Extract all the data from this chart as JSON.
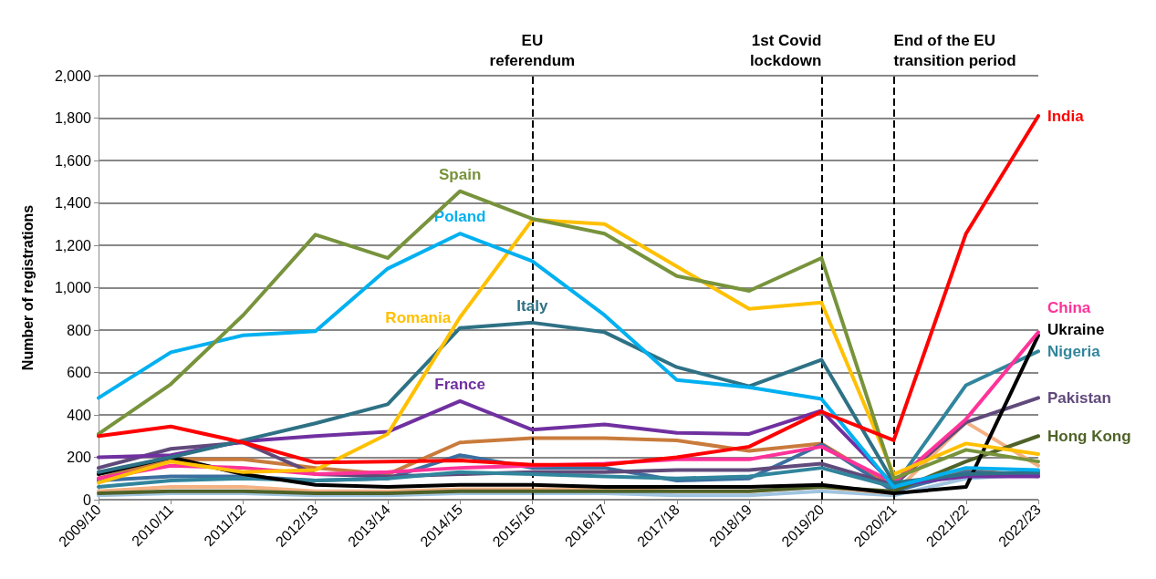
{
  "chart_data": {
    "type": "line",
    "ylabel": "Number of registrations",
    "categories": [
      "2009/10",
      "2010/11",
      "2011/12",
      "2012/13",
      "2013/14",
      "2014/15",
      "2015/16",
      "2016/17",
      "2017/18",
      "2018/19",
      "2019/20",
      "2020/21",
      "2021/22",
      "2022/23"
    ],
    "series": [
      {
        "color": "#a0c4e0",
        "values": [
          20,
          30,
          30,
          20,
          20,
          30,
          30,
          30,
          20,
          20,
          40,
          20,
          100,
          120
        ]
      },
      {
        "color": "#f4b183",
        "values": [
          40,
          60,
          60,
          40,
          40,
          50,
          50,
          50,
          40,
          40,
          60,
          30,
          365,
          160
        ]
      },
      {
        "color": "#c97b3c",
        "values": [
          100,
          190,
          190,
          150,
          120,
          270,
          290,
          290,
          280,
          230,
          265,
          60,
          140,
          110
        ]
      },
      {
        "color": "#3b6fa0",
        "values": [
          90,
          110,
          110,
          90,
          100,
          210,
          150,
          150,
          90,
          100,
          260,
          40,
          130,
          120
        ]
      },
      {
        "name": "Hong Kong",
        "color": "#4f6228",
        "values": [
          30,
          40,
          40,
          30,
          30,
          40,
          40,
          40,
          40,
          40,
          60,
          40,
          180,
          300
        ]
      },
      {
        "name": "Pakistan",
        "color": "#604a7b",
        "values": [
          150,
          240,
          270,
          120,
          110,
          120,
          130,
          130,
          140,
          140,
          170,
          70,
          365,
          480
        ]
      },
      {
        "name": "Nigeria",
        "color": "#31859c",
        "values": [
          60,
          90,
          100,
          90,
          100,
          130,
          120,
          110,
          100,
          110,
          150,
          60,
          540,
          700
        ]
      },
      {
        "name": "Ukraine",
        "color": "#000000",
        "values": [
          120,
          200,
          120,
          70,
          60,
          70,
          70,
          60,
          60,
          60,
          70,
          30,
          60,
          775
        ]
      },
      {
        "name": "China",
        "color": "#ff3399",
        "values": [
          100,
          160,
          150,
          120,
          130,
          150,
          160,
          170,
          190,
          190,
          250,
          80,
          380,
          790
        ]
      },
      {
        "name": "France",
        "color": "#7030a0",
        "values": [
          200,
          210,
          275,
          300,
          320,
          465,
          330,
          355,
          315,
          310,
          420,
          70,
          110,
          110
        ]
      },
      {
        "name": "Italy",
        "color": "#2e7185",
        "values": [
          130,
          200,
          280,
          360,
          450,
          810,
          835,
          790,
          625,
          535,
          660,
          80,
          120,
          130
        ]
      },
      {
        "name": "Romania",
        "color": "#ffc000",
        "values": [
          80,
          180,
          130,
          140,
          310,
          860,
          1320,
          1300,
          1100,
          900,
          930,
          120,
          265,
          215
        ]
      },
      {
        "name": "Poland",
        "color": "#00b0f0",
        "values": [
          480,
          695,
          775,
          795,
          1090,
          1255,
          1125,
          870,
          565,
          530,
          475,
          60,
          150,
          140
        ]
      },
      {
        "name": "Spain",
        "color": "#77933c",
        "values": [
          310,
          545,
          870,
          1250,
          1140,
          1455,
          1325,
          1255,
          1055,
          985,
          1140,
          100,
          235,
          180
        ]
      },
      {
        "name": "India",
        "color": "#ff0000",
        "values": [
          300,
          345,
          270,
          175,
          180,
          185,
          165,
          165,
          200,
          250,
          415,
          280,
          1255,
          1810
        ]
      }
    ],
    "ylim": [
      0,
      2000
    ],
    "yticks": [
      0,
      200,
      400,
      600,
      800,
      {
        "value": 1000,
        "label": "1,000"
      },
      {
        "value": 1200,
        "label": "1,200"
      },
      {
        "value": 1400,
        "label": "1,400"
      },
      {
        "value": 1600,
        "label": "1,600"
      },
      {
        "value": 1800,
        "label": "1,800"
      },
      {
        "value": 2000,
        "label": "2,000"
      }
    ],
    "grid": "y",
    "legend": false,
    "marker": "none",
    "line_style": "solid",
    "ref_lines": [
      {
        "axis": "x",
        "value": "2015/16",
        "label": "EU\nreferendum",
        "color": "#000000",
        "line_style": "dashed"
      },
      {
        "axis": "x",
        "value": "2019/20",
        "label": "1st Covid\nlockdown",
        "color": "#000000",
        "line_style": "dashed"
      },
      {
        "axis": "x",
        "value": "2020/21",
        "label": "End of the EU\ntransition period",
        "color": "#000000",
        "line_style": "dashed"
      }
    ]
  }
}
